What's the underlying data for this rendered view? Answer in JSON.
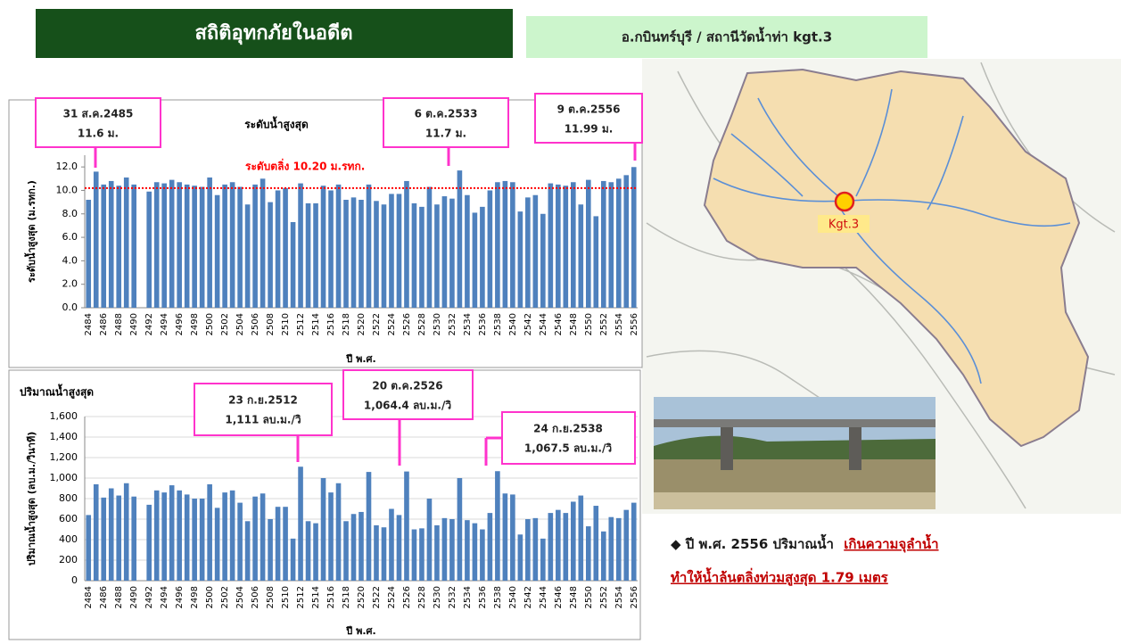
{
  "header": {
    "title": "สถิติอุทกภัยในอดีต",
    "subtitle": "อ.กบินทร์บุรี / สถานีวัดน้ำท่า kgt.3"
  },
  "map": {
    "station_label": "Kgt.3"
  },
  "note": {
    "bullet": "◆ ปี พ.ศ. 2556 ปริมาณน้ำ",
    "highlight_1": "เกินความจุลำน้ำ",
    "highlight_2": "ทำให้น้ำล้นตลิ่งท่วมสูงสุด 1.79 เมตร"
  },
  "chart_data": [
    {
      "type": "bar",
      "title": "ระดับน้ำสูงสุด",
      "x_label": "ปี พ.ศ.",
      "y_label": "ระดับน้ำสูงสุด (ม.รทก.)",
      "color": "#4f81bd",
      "grid": false,
      "categories": [
        "2484",
        null,
        "2486",
        null,
        "2488",
        null,
        "2490",
        null,
        "2492",
        null,
        "2494",
        null,
        "2496",
        null,
        "2498",
        null,
        "2500",
        null,
        "2502",
        null,
        "2504",
        null,
        "2506",
        null,
        "2508",
        null,
        "2510",
        null,
        "2512",
        null,
        "2514",
        null,
        "2516",
        null,
        "2518",
        null,
        "2520",
        null,
        "2522",
        null,
        "2524",
        null,
        "2526",
        null,
        "2528",
        null,
        "2530",
        null,
        "2532",
        null,
        "2534",
        null,
        "2536",
        null,
        "2538",
        null,
        "2540",
        null,
        "2542",
        null,
        "2544",
        null,
        "2546",
        null,
        "2548",
        null,
        "2550",
        null,
        "2552",
        null,
        "2554",
        null,
        "2556"
      ],
      "values": [
        9.2,
        11.6,
        10.5,
        10.8,
        10.4,
        11.1,
        10.5,
        null,
        9.9,
        10.7,
        10.6,
        10.9,
        10.7,
        10.5,
        10.4,
        10.3,
        11.1,
        9.6,
        10.5,
        10.7,
        10.3,
        8.8,
        10.5,
        11.0,
        9.0,
        10.0,
        10.2,
        7.3,
        10.6,
        8.9,
        8.9,
        10.4,
        10.0,
        10.5,
        9.2,
        9.4,
        9.2,
        10.5,
        9.1,
        8.8,
        9.7,
        9.7,
        10.8,
        8.9,
        8.6,
        10.3,
        8.8,
        9.5,
        9.3,
        11.7,
        9.6,
        8.1,
        8.6,
        10.0,
        10.7,
        10.8,
        10.7,
        8.2,
        9.4,
        9.6,
        8.0,
        10.6,
        10.5,
        10.4,
        10.7,
        8.8,
        10.9,
        7.8,
        10.8,
        10.7,
        11.0,
        11.3,
        11.99
      ],
      "ylim": [
        0,
        13
      ],
      "yticks": [
        {
          "value": 0,
          "label": "0.0"
        },
        {
          "value": 2,
          "label": "2.0"
        },
        {
          "value": 4,
          "label": "4.0"
        },
        {
          "value": 6,
          "label": "6.0"
        },
        {
          "value": 8,
          "label": "8.0"
        },
        {
          "value": 10,
          "label": "10.0"
        },
        {
          "value": 12,
          "label": "12.0"
        }
      ],
      "threshold": {
        "value": 10.2,
        "label": "ระดับตลิ่ง 10.20 ม.รทก.",
        "color": "#ff0000"
      },
      "annotations": [
        {
          "date": "31 ส.ค.2485",
          "text": "11.6 ม."
        },
        {
          "date": "6 ต.ค.2533",
          "text": "11.7 ม."
        },
        {
          "date": "9 ต.ค.2556",
          "text": "11.99 ม."
        }
      ]
    },
    {
      "type": "bar",
      "title": "ปริมาณน้ำสูงสุด",
      "x_label": "ปี พ.ศ.",
      "y_label": "ปริมาณน้ำสูงสุด (ลบ.ม./วินาที)",
      "color": "#4f81bd",
      "grid": true,
      "categories": [
        "2484",
        null,
        "2486",
        null,
        "2488",
        null,
        "2490",
        null,
        "2492",
        null,
        "2494",
        null,
        "2496",
        null,
        "2498",
        null,
        "2500",
        null,
        "2502",
        null,
        "2504",
        null,
        "2506",
        null,
        "2508",
        null,
        "2510",
        null,
        "2512",
        null,
        "2514",
        null,
        "2516",
        null,
        "2518",
        null,
        "2520",
        null,
        "2522",
        null,
        "2524",
        null,
        "2526",
        null,
        "2528",
        null,
        "2530",
        null,
        "2532",
        null,
        "2534",
        null,
        "2536",
        null,
        "2538",
        null,
        "2540",
        null,
        "2542",
        null,
        "2544",
        null,
        "2546",
        null,
        "2548",
        null,
        "2550",
        null,
        "2552",
        null,
        "2554",
        null,
        "2556"
      ],
      "values": [
        640,
        940,
        810,
        900,
        830,
        950,
        820,
        null,
        740,
        880,
        860,
        930,
        880,
        840,
        800,
        800,
        940,
        710,
        860,
        880,
        760,
        580,
        820,
        850,
        600,
        720,
        720,
        410,
        1111,
        580,
        560,
        1000,
        860,
        950,
        580,
        650,
        670,
        1060,
        540,
        520,
        700,
        640,
        1064.4,
        500,
        510,
        800,
        540,
        610,
        600,
        1000,
        590,
        560,
        500,
        660,
        1067.5,
        850,
        840,
        450,
        600,
        610,
        410,
        660,
        690,
        660,
        770,
        830,
        530,
        730,
        480,
        620,
        610,
        690,
        760
      ],
      "ylim": [
        0,
        1600
      ],
      "yticks": [
        0,
        200,
        400,
        600,
        800,
        {
          "value": 1000,
          "label": "1,000"
        },
        {
          "value": 1200,
          "label": "1,200"
        },
        {
          "value": 1400,
          "label": "1,400"
        },
        {
          "value": 1600,
          "label": "1,600"
        }
      ],
      "annotations": [
        {
          "date": "23 ก.ย.2512",
          "text": "1,111 ลบ.ม./วิ"
        },
        {
          "date": "20 ต.ค.2526",
          "text": "1,064.4 ลบ.ม./วิ"
        },
        {
          "date": "24 ก.ย.2538",
          "text": "1,067.5 ลบ.ม./วิ"
        }
      ]
    }
  ]
}
